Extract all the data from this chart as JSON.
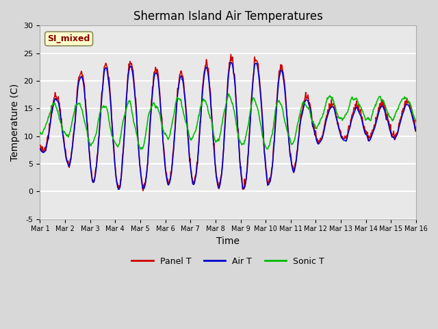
{
  "title": "Sherman Island Air Temperatures",
  "xlabel": "Time",
  "ylabel": "Temperature (C)",
  "ylim": [
    -5,
    30
  ],
  "xlim": [
    0,
    15
  ],
  "xtick_labels": [
    "Mar 1",
    "Mar 2",
    "Mar 3",
    "Mar 4",
    "Mar 5",
    "Mar 6",
    "Mar 7",
    "Mar 8",
    "Mar 9",
    "Mar 10",
    "Mar 11",
    "Mar 12",
    "Mar 13",
    "Mar 14",
    "Mar 15",
    "Mar 16"
  ],
  "xtick_positions": [
    0,
    1,
    2,
    3,
    4,
    5,
    6,
    7,
    8,
    9,
    10,
    11,
    12,
    13,
    14,
    15
  ],
  "ytick_labels": [
    "-5",
    "0",
    "5",
    "10",
    "15",
    "20",
    "25",
    "30"
  ],
  "ytick_positions": [
    -5,
    0,
    5,
    10,
    15,
    20,
    25,
    30
  ],
  "panel_t_color": "#cc0000",
  "air_t_color": "#0000cc",
  "sonic_t_color": "#00bb00",
  "bg_color": "#e0e0e0",
  "plot_bg_color": "#e8e8e8",
  "grid_color": "#ffffff",
  "annotation_text": "SI_mixed",
  "annotation_color": "#880000",
  "annotation_bg": "#ffffcc",
  "legend_labels": [
    "Panel T",
    "Air T",
    "Sonic T"
  ],
  "title_fontsize": 12,
  "axis_fontsize": 10,
  "tick_fontsize": 8,
  "line_width": 1.2
}
